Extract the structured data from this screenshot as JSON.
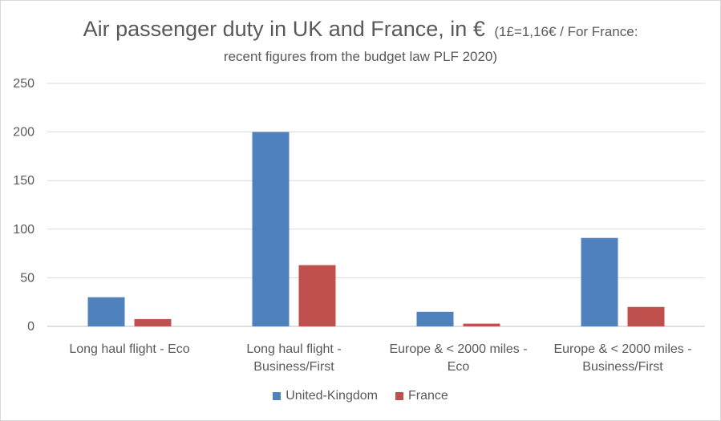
{
  "title": {
    "main": "Air passenger duty in UK and France, in €",
    "note": "(1£=1,16€ / For France:",
    "line2": "recent figures from the budget law PLF 2020)"
  },
  "chart_data": {
    "type": "bar",
    "title": "Air passenger duty in UK and France, in € (1£=1,16€ / For France: recent figures from the budget law PLF 2020)",
    "categories": [
      [
        "Long haul flight - Eco"
      ],
      [
        "Long haul flight -",
        "Business/First"
      ],
      [
        "Europe & < 2000 miles -",
        "Eco"
      ],
      [
        "Europe & < 2000 miles -",
        "Business/First"
      ]
    ],
    "series": [
      {
        "name": "United-Kingdom",
        "color": "#4f81bd",
        "values": [
          30,
          200,
          15,
          91
        ]
      },
      {
        "name": "France",
        "color": "#c0504d",
        "values": [
          7.5,
          63,
          2.8,
          20
        ]
      }
    ],
    "yticks": [
      0,
      50,
      100,
      150,
      200,
      250
    ],
    "ylim": [
      0,
      250
    ],
    "xlabel": "",
    "ylabel": "",
    "grid": true,
    "legend_position": "bottom"
  }
}
